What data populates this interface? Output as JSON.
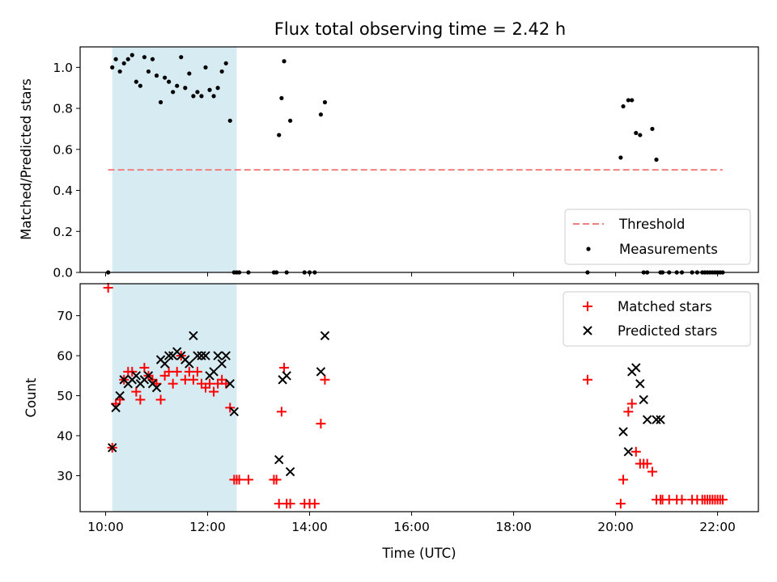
{
  "chart_data": {
    "title": "Flux total observing time = 2.42 h",
    "xlabel": "Time (UTC)",
    "xlim": [
      9.5,
      22.8
    ],
    "xticks": [
      {
        "value": 10,
        "label": "10:00"
      },
      {
        "value": 12,
        "label": "12:00"
      },
      {
        "value": 14,
        "label": "14:00"
      },
      {
        "value": 16,
        "label": "16:00"
      },
      {
        "value": 18,
        "label": "18:00"
      },
      {
        "value": 20,
        "label": "20:00"
      },
      {
        "value": 22,
        "label": "22:00"
      }
    ],
    "shaded_span": {
      "x0": 10.13,
      "x1": 12.57,
      "color": "#add8e6"
    },
    "colors": {
      "threshold": "#f08080",
      "measurements": "#000000",
      "matched": "#ff0000",
      "predicted": "#000000"
    },
    "panels": [
      {
        "type": "scatter",
        "ylabel": "Matched/Predicted stars",
        "ylim": [
          0,
          1.1
        ],
        "yticks": [
          0.0,
          0.2,
          0.4,
          0.6,
          0.8,
          1.0
        ],
        "ytick_labels": [
          "0.0",
          "0.2",
          "0.4",
          "0.6",
          "0.8",
          "1.0"
        ],
        "legend": {
          "position": "lower-right",
          "entries": [
            "Threshold",
            "Measurements"
          ]
        },
        "series": [
          {
            "name": "Threshold",
            "style": "dashed-line",
            "x": [
              10.05,
              22.1
            ],
            "y": [
              0.5,
              0.5
            ]
          },
          {
            "name": "Measurements",
            "style": "dot",
            "x": [
              10.05,
              10.13,
              10.2,
              10.28,
              10.36,
              10.44,
              10.52,
              10.6,
              10.68,
              10.76,
              10.84,
              10.92,
              11.0,
              11.08,
              11.16,
              11.24,
              11.32,
              11.4,
              11.48,
              11.56,
              11.64,
              11.72,
              11.8,
              11.88,
              11.96,
              12.04,
              12.12,
              12.2,
              12.28,
              12.36,
              12.44,
              12.52,
              12.57,
              12.62,
              12.8,
              13.3,
              13.35,
              13.4,
              13.45,
              13.5,
              13.55,
              13.62,
              13.9,
              14.0,
              14.1,
              14.22,
              14.3,
              19.45,
              20.1,
              20.15,
              20.25,
              20.32,
              20.4,
              20.48,
              20.55,
              20.62,
              20.72,
              20.8,
              20.88,
              20.92,
              21.05,
              21.2,
              21.3,
              21.5,
              21.6,
              21.7,
              21.75,
              21.8,
              21.85,
              21.9,
              21.95,
              22.0,
              22.05,
              22.1
            ],
            "y": [
              0.0,
              1.0,
              1.04,
              0.98,
              1.02,
              1.04,
              1.06,
              0.93,
              0.91,
              1.05,
              0.98,
              1.04,
              0.96,
              0.83,
              0.95,
              0.93,
              0.88,
              0.91,
              1.05,
              0.9,
              0.97,
              0.86,
              0.88,
              0.86,
              1.0,
              0.89,
              0.86,
              0.9,
              0.98,
              1.02,
              0.74,
              0.0,
              0.0,
              0.0,
              0.0,
              0.0,
              0.0,
              0.67,
              0.85,
              1.03,
              0.0,
              0.74,
              0.0,
              0.0,
              0.0,
              0.77,
              0.83,
              0.0,
              0.56,
              0.81,
              0.84,
              0.84,
              0.68,
              0.67,
              0.0,
              0.0,
              0.7,
              0.55,
              0.0,
              0.0,
              0.0,
              0.0,
              0.0,
              0.0,
              0.0,
              0.0,
              0.0,
              0.0,
              0.0,
              0.0,
              0.0,
              0.0,
              0.0,
              0.0
            ]
          }
        ]
      },
      {
        "type": "scatter",
        "ylabel": "Count",
        "ylim": [
          21,
          78
        ],
        "yticks": [
          30,
          40,
          50,
          60,
          70
        ],
        "ytick_labels": [
          "30",
          "40",
          "50",
          "60",
          "70"
        ],
        "legend": {
          "position": "upper-right",
          "entries": [
            "Matched stars",
            "Predicted stars"
          ]
        },
        "series": [
          {
            "name": "Matched stars",
            "style": "plus",
            "x": [
              10.05,
              10.13,
              10.2,
              10.28,
              10.36,
              10.44,
              10.52,
              10.6,
              10.68,
              10.76,
              10.84,
              10.92,
              11.0,
              11.08,
              11.16,
              11.24,
              11.32,
              11.4,
              11.48,
              11.56,
              11.64,
              11.72,
              11.8,
              11.88,
              11.96,
              12.04,
              12.12,
              12.2,
              12.28,
              12.36,
              12.44,
              12.52,
              12.57,
              12.62,
              12.8,
              13.3,
              13.35,
              13.4,
              13.45,
              13.5,
              13.55,
              13.62,
              13.9,
              14.0,
              14.1,
              14.22,
              14.3,
              19.45,
              20.1,
              20.15,
              20.25,
              20.32,
              20.4,
              20.48,
              20.55,
              20.62,
              20.72,
              20.8,
              20.88,
              20.92,
              21.05,
              21.2,
              21.3,
              21.5,
              21.6,
              21.7,
              21.75,
              21.8,
              21.85,
              21.9,
              21.95,
              22.0,
              22.05,
              22.1
            ],
            "y": [
              77,
              37,
              48,
              49,
              54,
              56,
              56,
              51,
              49,
              57,
              55,
              54,
              53,
              49,
              55,
              56,
              53,
              56,
              60,
              54,
              56,
              54,
              56,
              53,
              52,
              53,
              51,
              53,
              54,
              53,
              47,
              29,
              29,
              29,
              29,
              29,
              29,
              23,
              46,
              57,
              23,
              23,
              23,
              23,
              23,
              43,
              54,
              54,
              23,
              29,
              46,
              48,
              36,
              33,
              33,
              33,
              31,
              24,
              24,
              24,
              24,
              24,
              24,
              24,
              24,
              24,
              24,
              24,
              24,
              24,
              24,
              24,
              24,
              24
            ]
          },
          {
            "name": "Predicted stars",
            "style": "cross",
            "x": [
              10.13,
              10.2,
              10.28,
              10.36,
              10.44,
              10.52,
              10.6,
              10.68,
              10.76,
              10.84,
              10.92,
              11.0,
              11.08,
              11.16,
              11.24,
              11.32,
              11.4,
              11.48,
              11.56,
              11.64,
              11.72,
              11.8,
              11.88,
              11.96,
              12.04,
              12.12,
              12.2,
              12.28,
              12.36,
              12.44,
              12.52,
              13.4,
              13.47,
              13.55,
              13.62,
              14.22,
              14.3,
              20.15,
              20.25,
              20.32,
              20.4,
              20.48,
              20.55,
              20.62,
              20.8,
              20.88
            ],
            "y": [
              37,
              47,
              50,
              54,
              53,
              54,
              55,
              53,
              54,
              55,
              53,
              52,
              59,
              58,
              60,
              60,
              61,
              60,
              59,
              58,
              65,
              60,
              60,
              60,
              55,
              56,
              60,
              58,
              60,
              53,
              46,
              34,
              54,
              55,
              31,
              56,
              65,
              41,
              36,
              56,
              57,
              53,
              49,
              44,
              44,
              44
            ]
          }
        ]
      }
    ]
  }
}
